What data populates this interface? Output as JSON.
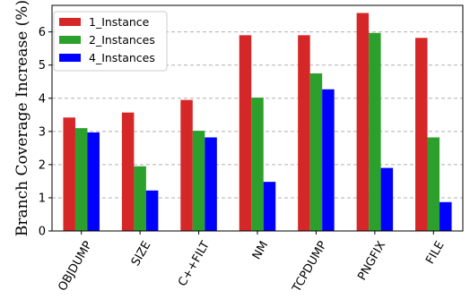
{
  "chart_data": {
    "type": "bar",
    "title": "",
    "xlabel": "",
    "ylabel": "Branch Coverage Increase (%)",
    "categories": [
      "OBJDUMP",
      "SIZE",
      "C++FILT",
      "NM",
      "TCPDUMP",
      "PNGFIX",
      "FILE"
    ],
    "series": [
      {
        "name": "1_Instance",
        "color": "#d62728",
        "values": [
          3.42,
          3.57,
          3.95,
          5.9,
          5.9,
          6.57,
          5.82
        ]
      },
      {
        "name": "2_Instances",
        "color": "#2ca02c",
        "values": [
          3.1,
          1.95,
          3.02,
          4.02,
          4.75,
          5.97,
          2.82
        ]
      },
      {
        "name": "4_Instances",
        "color": "#0000ff",
        "values": [
          2.97,
          1.22,
          2.82,
          1.48,
          4.27,
          1.9,
          0.87
        ]
      }
    ],
    "ylim": [
      0,
      6.8
    ],
    "yticks": [
      0,
      1,
      2,
      3,
      4,
      5,
      6
    ],
    "grid": "y-dashed",
    "legend_position": "top-left"
  }
}
